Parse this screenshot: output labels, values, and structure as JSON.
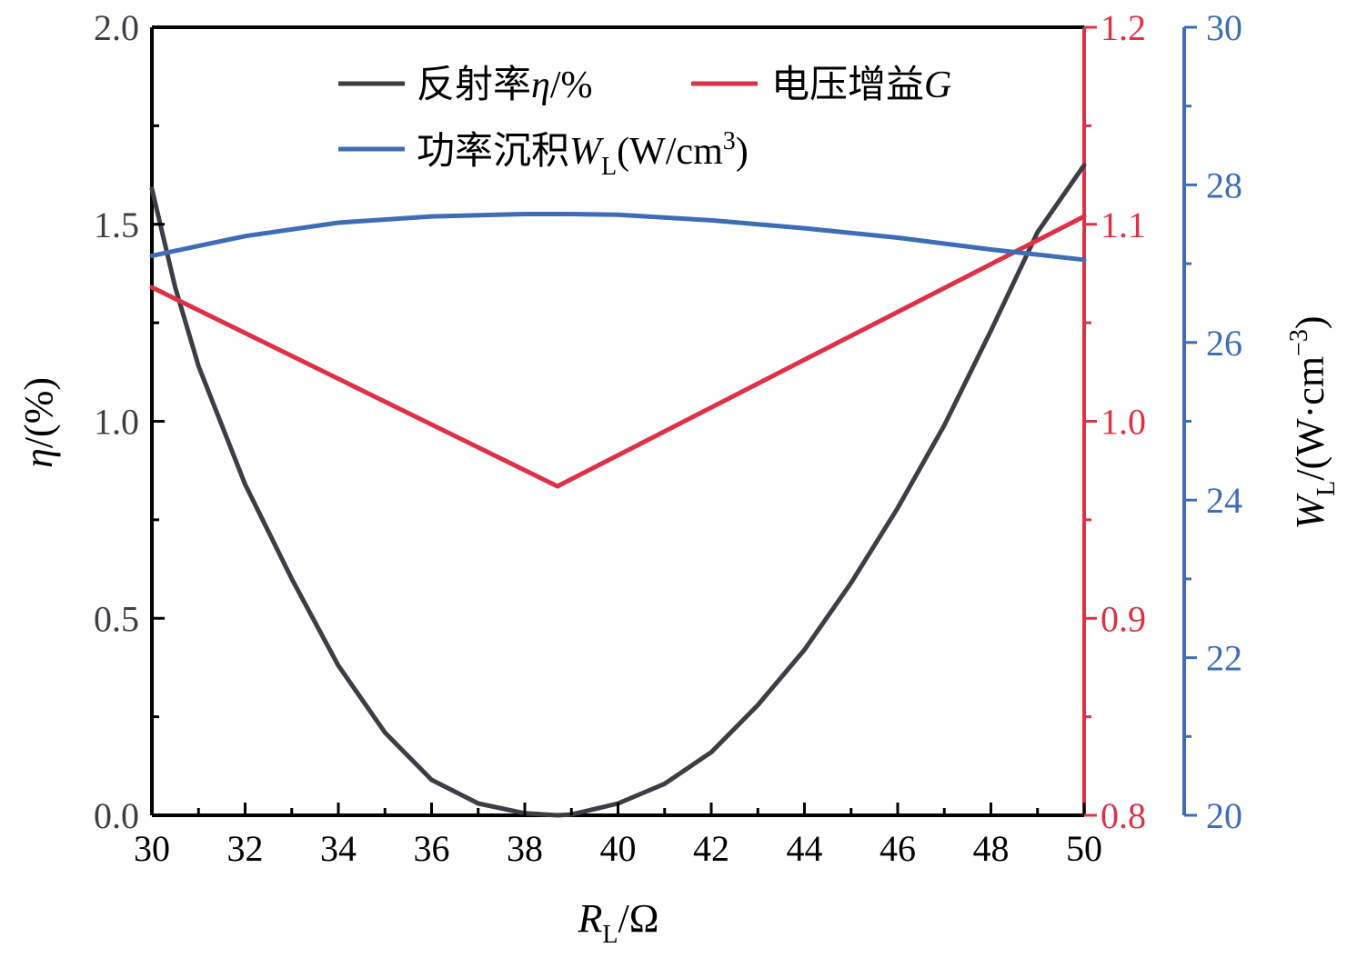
{
  "chart_data": {
    "type": "line",
    "x_axis": {
      "label_main": "R",
      "label_sub": "L",
      "label_unit": "/Ω",
      "range": [
        30,
        50
      ],
      "ticks": [
        30,
        32,
        34,
        36,
        38,
        40,
        42,
        44,
        46,
        48,
        50
      ],
      "tick_labels": [
        "30",
        "32",
        "34",
        "36",
        "38",
        "40",
        "42",
        "44",
        "46",
        "48",
        "50"
      ]
    },
    "y_left": {
      "label_main": "η",
      "label_unit": "/(%)",
      "range": [
        0,
        2.0
      ],
      "ticks": [
        0,
        0.5,
        1.0,
        1.5,
        2.0
      ],
      "tick_labels": [
        "0.0",
        "0.5",
        "1.0",
        "1.5",
        "2.0"
      ],
      "color": "#3d3d45"
    },
    "y_right1": {
      "range": [
        0.8,
        1.2
      ],
      "ticks": [
        0.8,
        0.9,
        1.0,
        1.1,
        1.2
      ],
      "tick_labels": [
        "0.8",
        "0.9",
        "1.0",
        "1.1",
        "1.2"
      ],
      "color": "#de3046"
    },
    "y_right2": {
      "label_main": "W",
      "label_sub": "L",
      "label_unit": "/(W·cm",
      "label_exp": "−3",
      "label_close": ")",
      "range": [
        20,
        30
      ],
      "ticks": [
        20,
        22,
        24,
        26,
        28,
        30
      ],
      "tick_labels": [
        "20",
        "22",
        "24",
        "26",
        "28",
        "30"
      ],
      "color": "#3e6db5"
    },
    "legend": {
      "placement": "top-center",
      "items": [
        {
          "id": "eta",
          "prefix": "反射率",
          "italic": "η",
          "suffix": "/%"
        },
        {
          "id": "gain",
          "prefix": "电压增益",
          "italic": "G",
          "suffix": ""
        },
        {
          "id": "power",
          "prefix": "功率沉积",
          "italic": "W",
          "sub": "L",
          "suffix": "(W/cm",
          "sup": "3",
          "close": ")"
        }
      ]
    },
    "series": [
      {
        "id": "eta",
        "axis": "y_left",
        "color": "#3d3d45",
        "x": [
          30,
          30.5,
          31,
          32,
          33,
          34,
          35,
          36,
          37,
          38,
          38.7,
          39,
          40,
          41,
          42,
          43,
          44,
          45,
          46,
          47,
          48,
          49,
          50
        ],
        "y": [
          1.59,
          1.34,
          1.14,
          0.84,
          0.6,
          0.38,
          0.21,
          0.09,
          0.03,
          0.005,
          0,
          0.002,
          0.03,
          0.08,
          0.16,
          0.28,
          0.42,
          0.59,
          0.78,
          0.99,
          1.23,
          1.48,
          1.65
        ]
      },
      {
        "id": "gain",
        "axis": "y_right1",
        "color": "#de3046",
        "x": [
          30,
          38.7,
          50
        ],
        "y": [
          1.068,
          0.967,
          1.104
        ]
      },
      {
        "id": "power",
        "axis": "y_right2",
        "color": "#3e6db5",
        "x": [
          30,
          32,
          34,
          36,
          38,
          39,
          40,
          42,
          44,
          46,
          48,
          50
        ],
        "y": [
          27.1,
          27.35,
          27.52,
          27.6,
          27.63,
          27.63,
          27.62,
          27.55,
          27.45,
          27.33,
          27.18,
          27.05
        ]
      }
    ]
  }
}
